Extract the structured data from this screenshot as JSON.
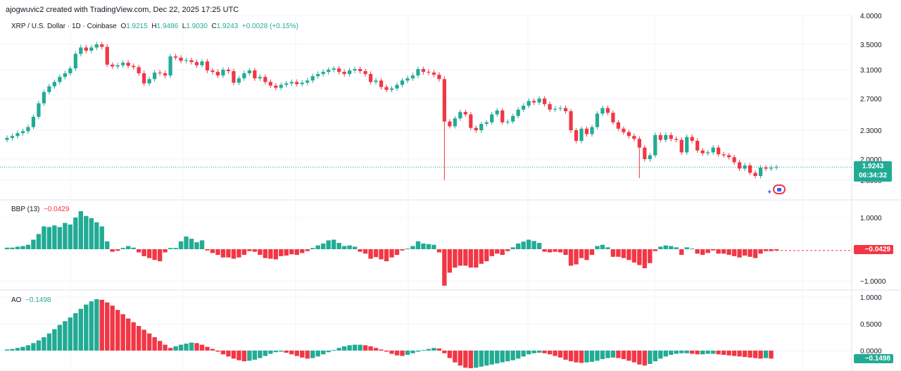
{
  "header": {
    "credit": "ajogwuvic2 created with TradingView.com, Dec 22, 2025 17:25 UTC"
  },
  "legend": {
    "symbol": "XRP / U.S. Dollar · 1D · Coinbase",
    "o_label": "O",
    "o": "1.9215",
    "h_label": "H",
    "h": "1.9486",
    "l_label": "L",
    "l": "1.9030",
    "c_label": "C",
    "c": "1.9243",
    "change": "+0.0028 (+0.15%)"
  },
  "price_badge": {
    "price": "1.9243",
    "countdown": "06:34:32"
  },
  "indicators": {
    "bbp": {
      "name": "BBP (13)",
      "value": "−0.0429",
      "badge": "−0.0429"
    },
    "ao": {
      "name": "AO",
      "value": "−0.1498",
      "badge": "−0.1498"
    }
  },
  "colors": {
    "up": "#22ab94",
    "down": "#f23645",
    "grid": "#f0f3fa",
    "text": "#131722"
  },
  "chart_data": [
    {
      "type": "candlestick",
      "title": "XRP / U.S. Dollar · 1D · Coinbase",
      "y_ticks": [
        4.0,
        3.5,
        3.1,
        2.7,
        2.3,
        2.0,
        1.8
      ],
      "y_tick_labels": [
        "4.0000",
        "3.5000",
        "3.1000",
        "2.7000",
        "2.3000",
        "2.0000",
        "1.8000"
      ],
      "last": 1.9243,
      "close": [
        2.22,
        2.24,
        2.27,
        2.29,
        2.34,
        2.47,
        2.64,
        2.79,
        2.87,
        2.93,
        3.0,
        3.05,
        3.12,
        3.35,
        3.45,
        3.4,
        3.45,
        3.5,
        3.46,
        3.18,
        3.15,
        3.17,
        3.21,
        3.16,
        3.14,
        3.05,
        2.91,
        2.97,
        3.06,
        3.05,
        3.02,
        3.31,
        3.29,
        3.24,
        3.25,
        3.22,
        3.17,
        3.23,
        3.09,
        3.07,
        3.02,
        3.1,
        3.08,
        2.92,
        2.98,
        3.05,
        3.09,
        2.98,
        3.0,
        2.93,
        2.88,
        2.85,
        2.89,
        2.91,
        2.93,
        2.9,
        2.92,
        2.95,
        3.01,
        3.04,
        3.07,
        3.1,
        3.12,
        3.07,
        3.04,
        3.09,
        3.11,
        3.08,
        3.04,
        2.93,
        2.95,
        2.86,
        2.82,
        2.84,
        2.89,
        2.95,
        2.98,
        3.02,
        3.11,
        3.07,
        3.06,
        3.03,
        2.97,
        2.41,
        2.35,
        2.45,
        2.53,
        2.5,
        2.33,
        2.3,
        2.38,
        2.4,
        2.5,
        2.55,
        2.4,
        2.41,
        2.48,
        2.56,
        2.61,
        2.67,
        2.65,
        2.7,
        2.63,
        2.56,
        2.57,
        2.58,
        2.54,
        2.3,
        2.19,
        2.32,
        2.26,
        2.34,
        2.51,
        2.58,
        2.52,
        2.4,
        2.32,
        2.28,
        2.24,
        2.21,
        2.12,
        2.0,
        2.04,
        2.25,
        2.2,
        2.25,
        2.21,
        2.2,
        2.07,
        2.23,
        2.19,
        2.09,
        2.06,
        2.07,
        2.12,
        2.05,
        2.04,
        2.02,
        1.97,
        1.91,
        1.94,
        1.87,
        1.84,
        1.92,
        1.91,
        1.92,
        1.9243
      ]
    },
    {
      "type": "bar",
      "title": "BBP (13)",
      "y_ticks": [
        1.0,
        -1.0
      ],
      "y_tick_labels": [
        "1.0000",
        "−1.0000"
      ],
      "values": [
        0.05,
        0.05,
        0.08,
        0.1,
        0.14,
        0.3,
        0.48,
        0.72,
        0.7,
        0.75,
        0.7,
        0.83,
        0.78,
        1.0,
        1.2,
        1.05,
        0.98,
        0.85,
        0.72,
        0.25,
        -0.08,
        -0.05,
        0.04,
        0.1,
        0.05,
        -0.1,
        -0.22,
        -0.28,
        -0.34,
        -0.38,
        -0.1,
        0.04,
        0.04,
        0.25,
        0.4,
        0.33,
        0.22,
        0.28,
        -0.04,
        -0.12,
        -0.18,
        -0.26,
        -0.26,
        -0.3,
        -0.26,
        -0.18,
        -0.06,
        -0.08,
        -0.18,
        -0.28,
        -0.3,
        -0.32,
        -0.22,
        -0.2,
        -0.16,
        -0.18,
        -0.12,
        -0.06,
        0.04,
        0.12,
        0.18,
        0.28,
        0.3,
        0.2,
        0.1,
        0.12,
        0.08,
        -0.08,
        -0.14,
        -0.3,
        -0.25,
        -0.32,
        -0.38,
        -0.26,
        -0.18,
        -0.04,
        0.02,
        0.1,
        0.25,
        0.18,
        0.16,
        0.14,
        -0.1,
        -1.15,
        -0.74,
        -0.58,
        -0.52,
        -0.52,
        -0.58,
        -0.58,
        -0.46,
        -0.38,
        -0.22,
        -0.14,
        -0.18,
        -0.06,
        0.06,
        0.18,
        0.24,
        0.3,
        0.26,
        0.2,
        -0.08,
        -0.1,
        -0.08,
        -0.1,
        -0.18,
        -0.52,
        -0.48,
        -0.28,
        -0.34,
        -0.18,
        0.1,
        0.14,
        0.06,
        -0.24,
        -0.24,
        -0.28,
        -0.34,
        -0.42,
        -0.5,
        -0.6,
        -0.44,
        -0.06,
        0.08,
        0.12,
        0.1,
        0.06,
        -0.18,
        0.06,
        0.02,
        -0.14,
        -0.18,
        -0.12,
        -0.04,
        -0.14,
        -0.14,
        -0.18,
        -0.22,
        -0.26,
        -0.2,
        -0.24,
        -0.28,
        -0.14,
        -0.06,
        -0.06,
        -0.0429
      ]
    },
    {
      "type": "bar",
      "title": "AO",
      "y_ticks": [
        1.0,
        0.5,
        0.0
      ],
      "y_tick_labels": [
        "1.0000",
        "0.5000",
        "0.0000"
      ],
      "values": [
        0.02,
        0.03,
        0.05,
        0.07,
        0.1,
        0.14,
        0.19,
        0.25,
        0.32,
        0.4,
        0.48,
        0.55,
        0.62,
        0.7,
        0.78,
        0.86,
        0.92,
        0.96,
        0.95,
        0.9,
        0.84,
        0.76,
        0.68,
        0.6,
        0.53,
        0.46,
        0.39,
        0.32,
        0.25,
        0.18,
        0.11,
        0.05,
        0.08,
        0.11,
        0.13,
        0.15,
        0.14,
        0.11,
        0.07,
        0.03,
        -0.02,
        -0.07,
        -0.11,
        -0.15,
        -0.18,
        -0.2,
        -0.19,
        -0.17,
        -0.14,
        -0.1,
        -0.06,
        -0.03,
        -0.02,
        -0.04,
        -0.07,
        -0.1,
        -0.13,
        -0.15,
        -0.14,
        -0.11,
        -0.07,
        -0.03,
        0.01,
        0.05,
        0.08,
        0.1,
        0.11,
        0.11,
        0.1,
        0.08,
        0.05,
        0.02,
        -0.02,
        -0.06,
        -0.09,
        -0.1,
        -0.08,
        -0.05,
        -0.02,
        0.01,
        0.03,
        0.05,
        0.04,
        -0.05,
        -0.14,
        -0.22,
        -0.28,
        -0.32,
        -0.33,
        -0.32,
        -0.3,
        -0.28,
        -0.26,
        -0.24,
        -0.22,
        -0.2,
        -0.18,
        -0.15,
        -0.11,
        -0.07,
        -0.05,
        -0.04,
        -0.05,
        -0.07,
        -0.1,
        -0.13,
        -0.17,
        -0.2,
        -0.22,
        -0.23,
        -0.22,
        -0.21,
        -0.19,
        -0.16,
        -0.14,
        -0.13,
        -0.14,
        -0.16,
        -0.19,
        -0.22,
        -0.26,
        -0.28,
        -0.25,
        -0.2,
        -0.15,
        -0.11,
        -0.08,
        -0.06,
        -0.05,
        -0.05,
        -0.06,
        -0.07,
        -0.07,
        -0.06,
        -0.06,
        -0.07,
        -0.08,
        -0.09,
        -0.1,
        -0.11,
        -0.12,
        -0.13,
        -0.14,
        -0.15,
        -0.14,
        -0.1498
      ]
    }
  ]
}
